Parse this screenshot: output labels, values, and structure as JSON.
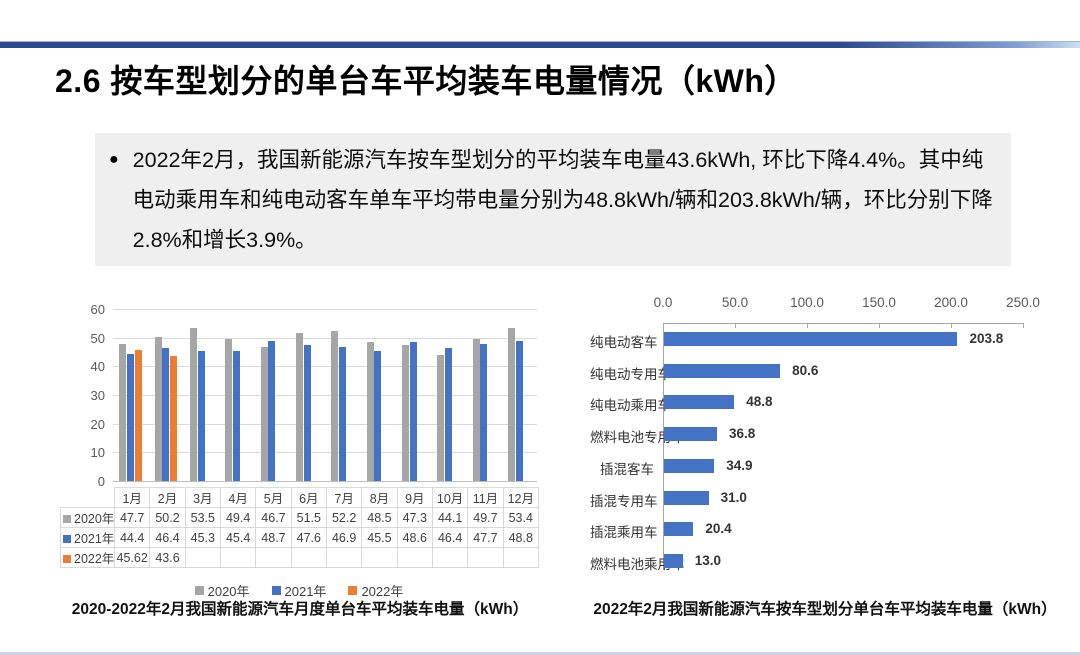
{
  "title": "2.6 按车型划分的单台车平均装车电量情况（kWh）",
  "note": {
    "bullet": "●",
    "text": "2022年2月，我国新能源汽车按车型划分的平均装车电量43.6kWh, 环比下降4.4%。其中纯电动乘用车和纯电动客车单车平均带电量分别为48.8kWh/辆和203.8kWh/辆，环比分别下降2.8%和增长3.9%。"
  },
  "colors": {
    "gray_series": "#a6a6a6",
    "blue_series": "#4472c4",
    "orange_series": "#ed7d31",
    "grid": "#d9d9d9",
    "axis_text": "#595959",
    "table_border": "#d9d9d9",
    "table_text": "#404040"
  },
  "chart_data": [
    {
      "type": "bar",
      "caption": "2020-2022年2月我国新能源汽车月度单台车平均装车电量（kWh）",
      "categories": [
        "1月",
        "2月",
        "3月",
        "4月",
        "5月",
        "6月",
        "7月",
        "8月",
        "9月",
        "10月",
        "11月",
        "12月"
      ],
      "series": [
        {
          "name": "2020年",
          "color": "#a6a6a6",
          "values": [
            47.7,
            50.2,
            53.5,
            49.4,
            46.7,
            51.5,
            52.2,
            48.5,
            47.3,
            44.1,
            49.7,
            53.4
          ]
        },
        {
          "name": "2021年",
          "color": "#4472c4",
          "values": [
            44.4,
            46.4,
            45.3,
            45.4,
            48.7,
            47.6,
            46.9,
            45.5,
            48.6,
            46.4,
            47.7,
            48.8
          ]
        },
        {
          "name": "2022年",
          "color": "#ed7d31",
          "values": [
            45.62,
            43.6,
            null,
            null,
            null,
            null,
            null,
            null,
            null,
            null,
            null,
            null
          ]
        }
      ],
      "ylim": [
        0,
        60
      ],
      "yticks": [
        0,
        10,
        20,
        30,
        40,
        50,
        60
      ],
      "legend_position": "bottom",
      "grid": true,
      "data_table": true
    },
    {
      "type": "bar",
      "orientation": "horizontal",
      "caption": "2022年2月我国新能源汽车按车型划分单台车平均装车电量（kWh）",
      "categories": [
        "纯电动客车",
        "纯电动专用车",
        "纯电动乘用车",
        "燃料电池专用车",
        "插混客车",
        "插混专用车",
        "插混乘用车",
        "燃料电池乘用车"
      ],
      "values": [
        203.8,
        80.6,
        48.8,
        36.8,
        34.9,
        31,
        20.4,
        13
      ],
      "value_labels": [
        "203.8",
        "80.6",
        "48.8",
        "36.8",
        "34.9",
        "31.0",
        "20.4",
        "13.0"
      ],
      "xlim": [
        0,
        250
      ],
      "xticks": [
        "0.0",
        "50.0",
        "100.0",
        "150.0",
        "200.0",
        "250.0"
      ],
      "bar_color": "#4472c4",
      "axis_position": "top",
      "grid": false
    }
  ]
}
